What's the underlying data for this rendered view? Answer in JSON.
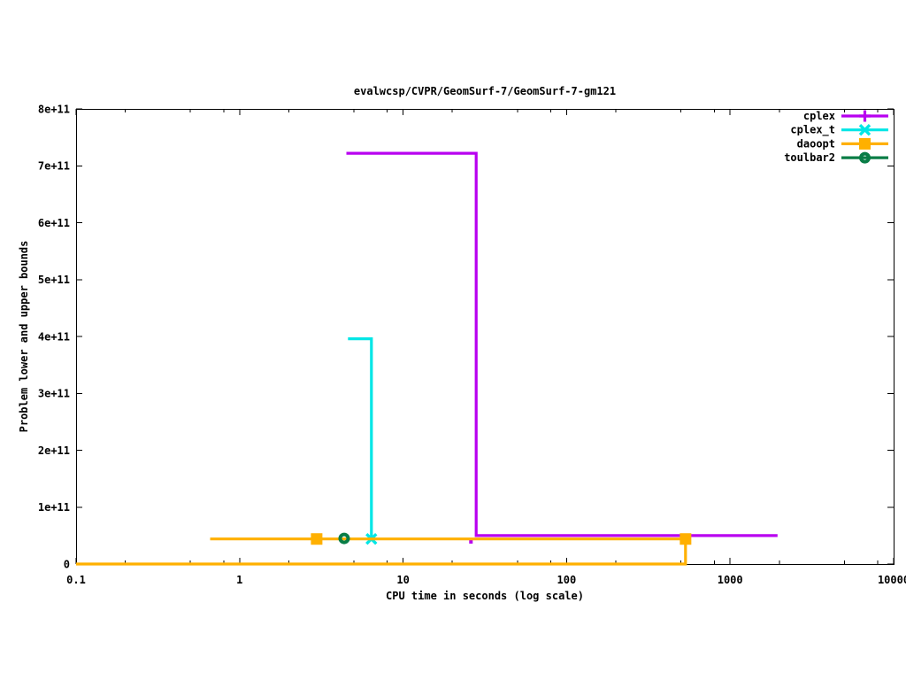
{
  "chart_data": {
    "type": "line",
    "title": "evalwcsp/CVPR/GeomSurf-7/GeomSurf-7-gm121",
    "xlabel": "CPU time in seconds (log scale)",
    "ylabel": "Problem lower and upper bounds",
    "x_scale": "log",
    "xlim": [
      0.1,
      10000
    ],
    "ylim": [
      0,
      800000000000.0
    ],
    "grid": "off",
    "legend_position": "top-right-inside",
    "background_color": "#ffffff",
    "text_color": "#000000",
    "x_ticks": [
      {
        "v": 0.1,
        "label": "0.1"
      },
      {
        "v": 1,
        "label": "1"
      },
      {
        "v": 10,
        "label": "10"
      },
      {
        "v": 100,
        "label": "100"
      },
      {
        "v": 1000,
        "label": "1000"
      },
      {
        "v": 10000,
        "label": "10000"
      }
    ],
    "x_minor_mantissas": [
      2,
      5,
      8
    ],
    "y_ticks": [
      {
        "v": 0,
        "label": "0"
      },
      {
        "v": 100000000000.0,
        "label": "1e+11"
      },
      {
        "v": 200000000000.0,
        "label": "2e+11"
      },
      {
        "v": 300000000000.0,
        "label": "3e+11"
      },
      {
        "v": 400000000000.0,
        "label": "4e+11"
      },
      {
        "v": 500000000000.0,
        "label": "5e+11"
      },
      {
        "v": 600000000000.0,
        "label": "6e+11"
      },
      {
        "v": 700000000000.0,
        "label": "7e+11"
      },
      {
        "v": 800000000000.0,
        "label": "8e+11"
      }
    ],
    "series": [
      {
        "name": "cplex",
        "color": "#b800f0",
        "marker": "plus",
        "segments": [
          [
            [
              4.5,
              722000000000.0
            ],
            [
              28,
              722000000000.0
            ],
            [
              28,
              50000000000.0
            ],
            [
              1950,
              50000000000.0
            ]
          ]
        ],
        "marker_points": [],
        "dots": [
          [
            26,
            39000000000.0
          ]
        ]
      },
      {
        "name": "cplex_t",
        "color": "#00e6e6",
        "marker": "cross",
        "segments": [
          [
            [
              4.6,
              396000000000.0
            ],
            [
              6.4,
              396000000000.0
            ],
            [
              6.4,
              44000000000.0
            ]
          ]
        ],
        "marker_points": [
          [
            6.4,
            44000000000.0
          ]
        ],
        "dots": []
      },
      {
        "name": "daoopt",
        "color": "#ffb000",
        "marker": "square",
        "segments": [
          [
            [
              0.66,
              44000000000.0
            ],
            [
              534,
              44000000000.0
            ]
          ],
          [
            [
              0.1,
              0
            ],
            [
              534,
              0
            ],
            [
              534,
              44000000000.0
            ]
          ]
        ],
        "marker_points": [
          [
            2.96,
            44000000000.0
          ],
          [
            534,
            44000000000.0
          ]
        ],
        "dots": []
      },
      {
        "name": "toulbar2",
        "color": "#087d46",
        "marker": "circle-dot",
        "segments": [],
        "marker_points": [
          [
            4.36,
            45000000000.0
          ]
        ],
        "dots": []
      }
    ]
  }
}
